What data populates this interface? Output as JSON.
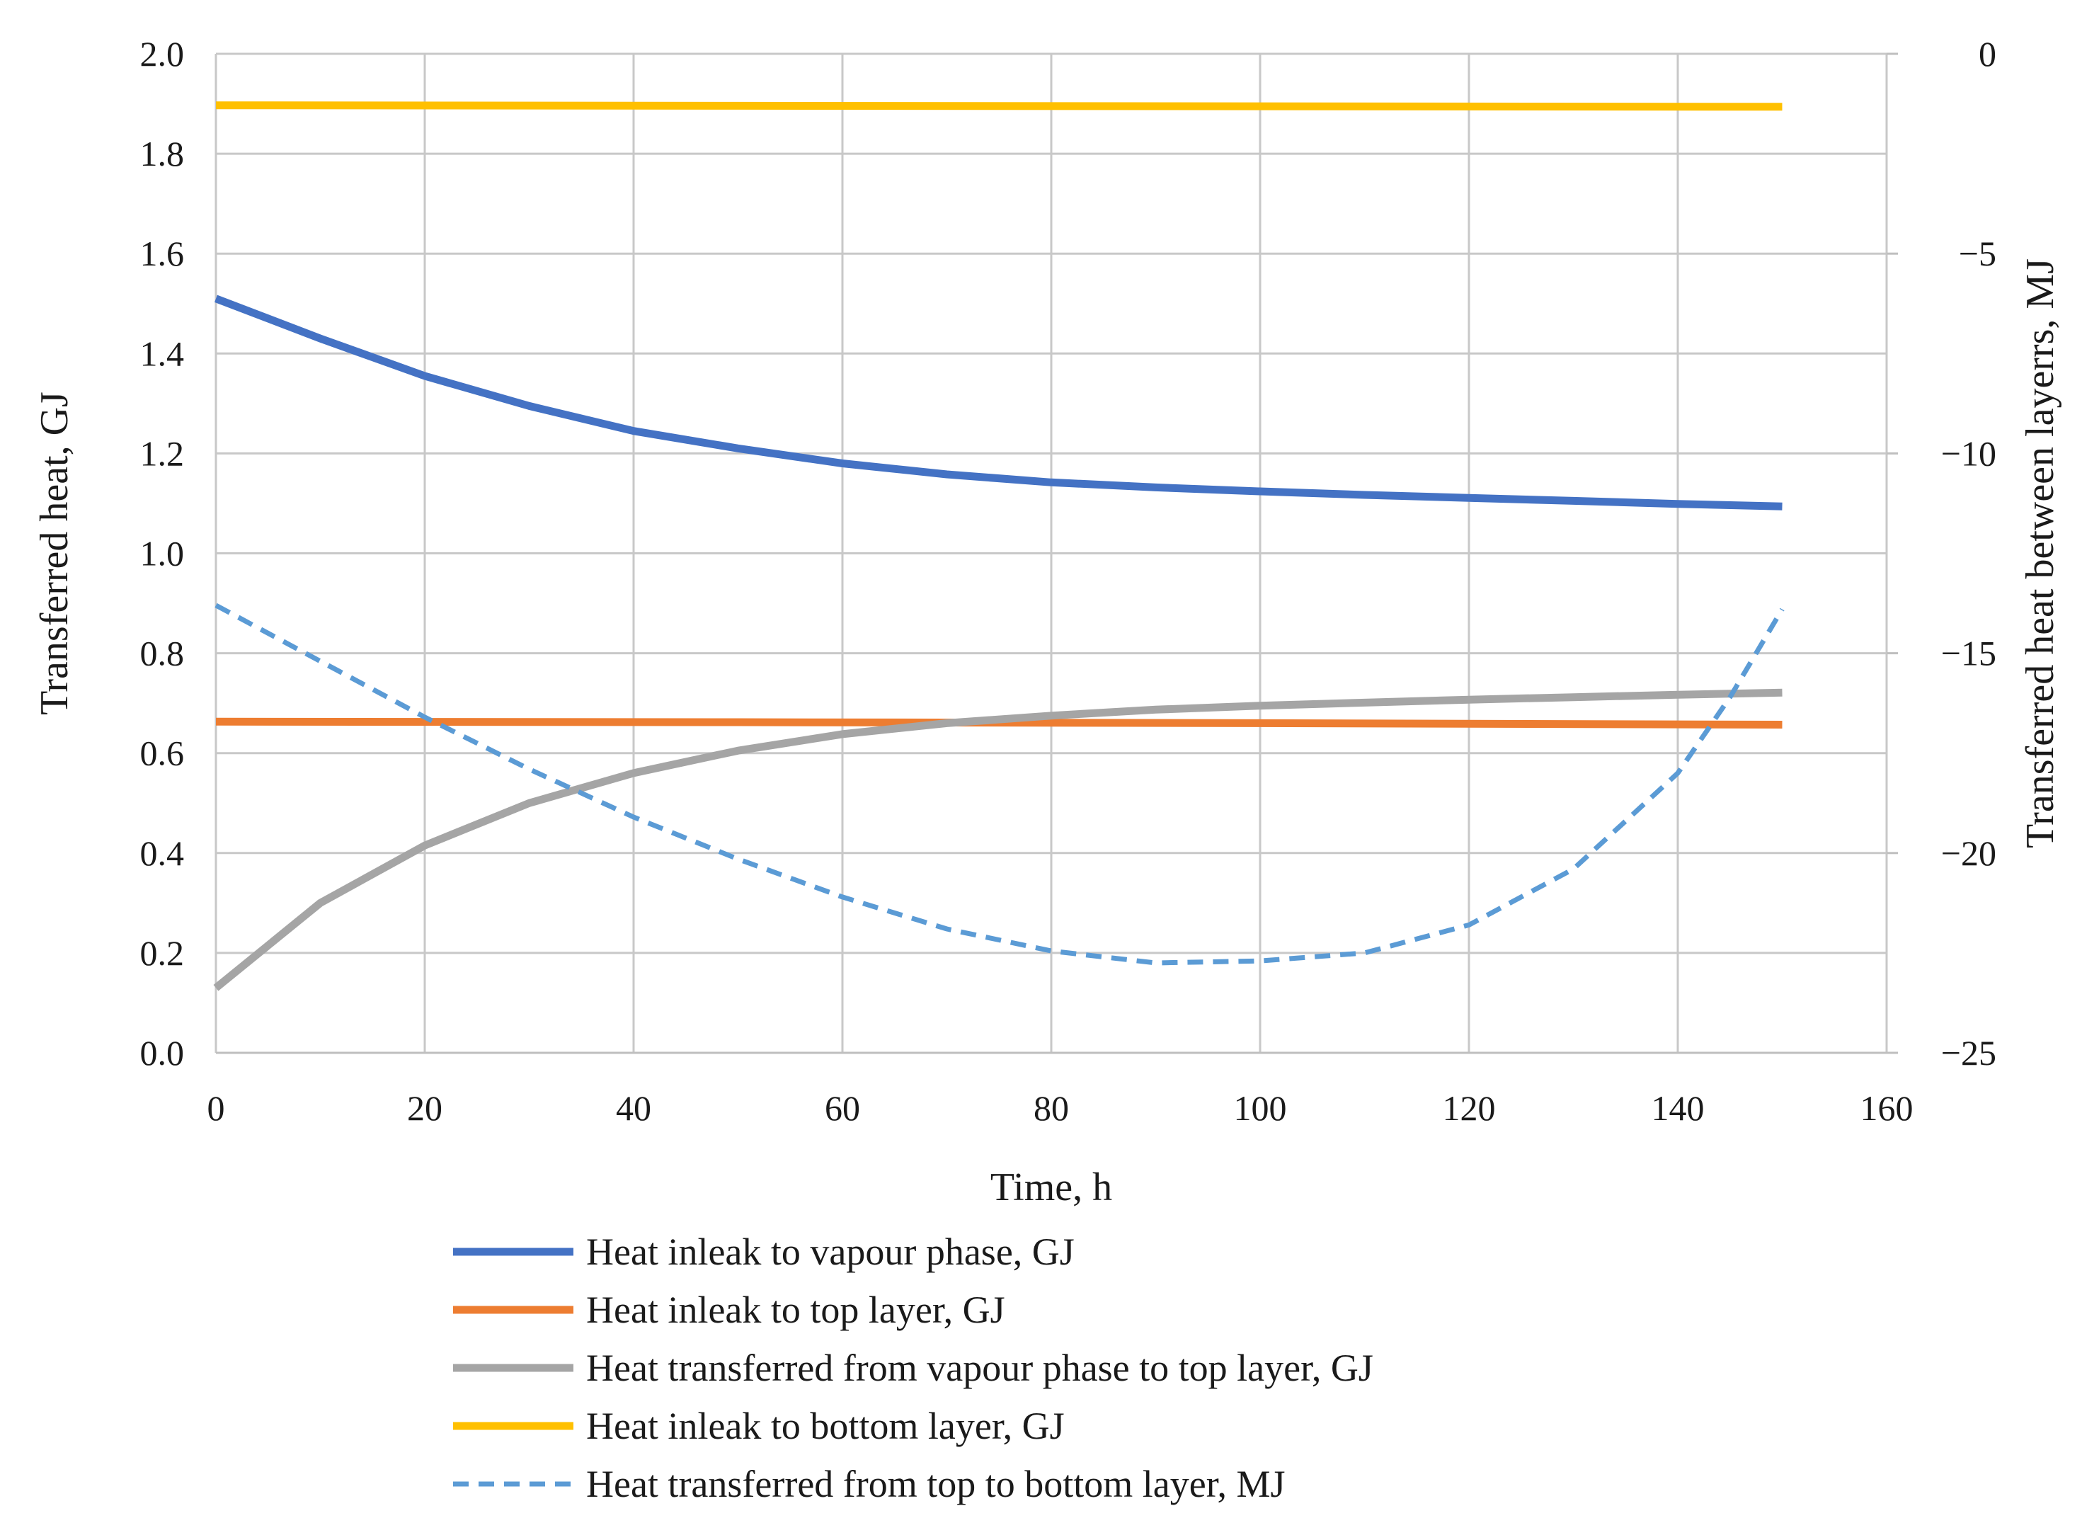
{
  "chart_data": {
    "type": "line",
    "x_axis": {
      "label": "Time, h",
      "min": 0,
      "max": 160,
      "ticks": [
        0,
        20,
        40,
        60,
        80,
        100,
        120,
        140,
        160
      ],
      "tick_labels": [
        "0",
        "20",
        "40",
        "60",
        "80",
        "100",
        "120",
        "140",
        "160"
      ]
    },
    "y_axis_left": {
      "label": "Transferred heat, GJ",
      "min": 0,
      "max": 2.0,
      "ticks": [
        0,
        0.2,
        0.4,
        0.6,
        0.8,
        1.0,
        1.2,
        1.4,
        1.6,
        1.8,
        2.0
      ],
      "tick_labels": [
        "0.0",
        "0.2",
        "0.4",
        "0.6",
        "0.8",
        "1.0",
        "1.2",
        "1.4",
        "1.6",
        "1.8",
        "2.0"
      ]
    },
    "y_axis_right": {
      "label": "Transferred heat between layerrs, MJ",
      "min": -25,
      "max": 0,
      "ticks": [
        -25,
        -20,
        -15,
        -10,
        -5,
        0
      ],
      "tick_labels": [
        "−25",
        "−20",
        "−15",
        "−10",
        "−5",
        "0"
      ]
    },
    "grid": true,
    "legend_position": "bottom",
    "series": [
      {
        "name": "Heat inleak to vapour phase, GJ",
        "axis": "left",
        "color": "#4472C4",
        "dashed": false,
        "x": [
          0,
          10,
          20,
          30,
          40,
          50,
          60,
          70,
          80,
          90,
          100,
          110,
          120,
          130,
          140,
          150
        ],
        "y": [
          1.51,
          1.43,
          1.355,
          1.295,
          1.245,
          1.21,
          1.18,
          1.158,
          1.142,
          1.132,
          1.124,
          1.117,
          1.111,
          1.105,
          1.099,
          1.094
        ]
      },
      {
        "name": "Heat inleak to top layer, GJ",
        "axis": "left",
        "color": "#ED7D31",
        "dashed": false,
        "x": [
          0,
          50,
          100,
          150
        ],
        "y": [
          0.663,
          0.662,
          0.66,
          0.657
        ]
      },
      {
        "name": "Heat transferred from vapour phase to top layer, GJ",
        "axis": "left",
        "color": "#A5A5A5",
        "dashed": false,
        "x": [
          0,
          10,
          20,
          30,
          40,
          50,
          60,
          70,
          80,
          90,
          100,
          110,
          120,
          130,
          140,
          150
        ],
        "y": [
          0.13,
          0.3,
          0.415,
          0.5,
          0.56,
          0.605,
          0.638,
          0.66,
          0.675,
          0.687,
          0.695,
          0.701,
          0.707,
          0.712,
          0.717,
          0.721
        ]
      },
      {
        "name": "Heat inleak to bottom layer, GJ",
        "axis": "left",
        "color": "#FFC000",
        "dashed": false,
        "x": [
          0,
          50,
          100,
          150
        ],
        "y": [
          1.897,
          1.896,
          1.895,
          1.894
        ]
      },
      {
        "name": "Heat transferred from top to bottom layer, MJ",
        "axis": "right",
        "color": "#5B9BD5",
        "dashed": true,
        "x": [
          0,
          10,
          20,
          30,
          40,
          50,
          60,
          70,
          80,
          90,
          100,
          110,
          120,
          130,
          140,
          145,
          150
        ],
        "y": [
          -13.8,
          -15.2,
          -16.6,
          -17.9,
          -19.1,
          -20.15,
          -21.1,
          -21.9,
          -22.45,
          -22.75,
          -22.7,
          -22.5,
          -21.8,
          -20.4,
          -18.0,
          -16.1,
          -13.9
        ]
      }
    ]
  }
}
